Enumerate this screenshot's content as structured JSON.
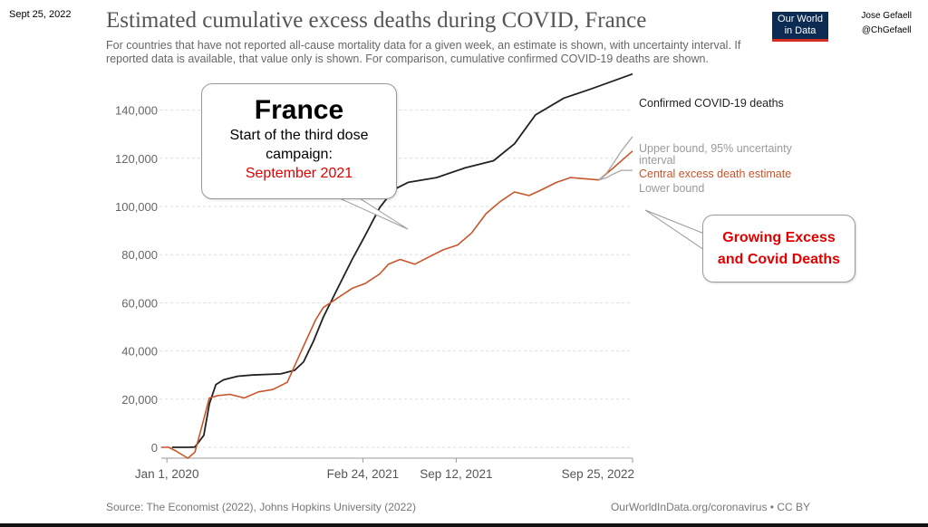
{
  "corner_date": "Sept 25, 2022",
  "author": {
    "name": "Jose Gefaell",
    "handle": "@ChGefaell"
  },
  "logo": {
    "line1": "Our World",
    "line2": "in Data"
  },
  "title": "Estimated cumulative excess deaths during COVID, France",
  "subtitle": "For countries that have not reported all-cause mortality data for a given week, an estimate is shown, with uncertainty interval. If reported data is available, that value only is shown. For comparison, cumulative confirmed COVID-19 deaths are shown.",
  "source": "Source: The Economist (2022), Johns Hopkins University (2022)",
  "credit": "OurWorldInData.org/coronavirus • CC BY",
  "callout_france": {
    "heading": "France",
    "line1": "Start of the third dose",
    "line2": "campaign:",
    "highlight": "September 2021"
  },
  "callout_growing": {
    "line1": "Growing Excess",
    "line2": "and Covid Deaths"
  },
  "colors": {
    "confirmed": "#222222",
    "central": "#c8552a",
    "upper": "#a8a8a8",
    "lower": "#a8a8a8",
    "alert": "#e00000"
  },
  "chart_data": {
    "type": "line",
    "ylim": [
      0,
      150000
    ],
    "yticks": [
      "0",
      "20,000",
      "40,000",
      "60,000",
      "80,000",
      "100,000",
      "120,000",
      "140,000"
    ],
    "yticks_values": [
      0,
      20000,
      40000,
      60000,
      80000,
      100000,
      120000,
      140000
    ],
    "xtick_labels": [
      "Jan 1, 2020",
      "Feb 24, 2021",
      "Sep 12, 2021",
      "Sep 25, 2022"
    ],
    "xtick_dates": [
      "2020-01-01",
      "2021-02-24",
      "2021-09-12",
      "2022-09-25"
    ],
    "xlim": [
      "2019-12-20",
      "2022-09-25"
    ],
    "grid": true,
    "series": [
      {
        "name": "Confirmed COVID-19 deaths",
        "key": "confirmed",
        "x": [
          "2020-01-12",
          "2020-02-15",
          "2020-03-01",
          "2020-03-20",
          "2020-04-01",
          "2020-04-15",
          "2020-05-01",
          "2020-06-01",
          "2020-07-01",
          "2020-09-01",
          "2020-10-01",
          "2020-10-20",
          "2020-11-10",
          "2020-12-01",
          "2021-01-01",
          "2021-02-01",
          "2021-03-01",
          "2021-04-01",
          "2021-05-01",
          "2021-06-01",
          "2021-08-01",
          "2021-10-01",
          "2021-12-01",
          "2022-01-15",
          "2022-03-01",
          "2022-05-01",
          "2022-07-01",
          "2022-09-25"
        ],
        "values": [
          0,
          0,
          100,
          5000,
          18000,
          26000,
          28000,
          29500,
          30000,
          30500,
          32000,
          35500,
          44000,
          54000,
          66000,
          78000,
          88000,
          99500,
          107000,
          110000,
          112000,
          116000,
          119000,
          126000,
          138000,
          145000,
          149000,
          155000
        ]
      },
      {
        "name": "Central excess death estimate",
        "key": "central",
        "x": [
          "2019-12-20",
          "2020-01-05",
          "2020-01-20",
          "2020-02-15",
          "2020-03-01",
          "2020-03-15",
          "2020-04-01",
          "2020-04-20",
          "2020-05-15",
          "2020-06-15",
          "2020-07-15",
          "2020-08-15",
          "2020-09-15",
          "2020-10-15",
          "2020-11-15",
          "2020-12-01",
          "2021-01-01",
          "2021-02-01",
          "2021-03-01",
          "2021-04-01",
          "2021-04-20",
          "2021-05-15",
          "2021-06-15",
          "2021-07-15",
          "2021-08-15",
          "2021-09-15",
          "2021-10-15",
          "2021-11-15",
          "2021-12-15",
          "2022-01-15",
          "2022-02-15",
          "2022-03-15",
          "2022-04-15",
          "2022-05-15",
          "2022-06-15",
          "2022-07-15",
          "2022-08-15",
          "2022-09-25"
        ],
        "values": [
          0,
          0,
          -1500,
          -4500,
          -2000,
          8000,
          20500,
          21500,
          22000,
          20500,
          23000,
          24000,
          27000,
          40000,
          53000,
          58000,
          62000,
          66000,
          68000,
          72000,
          76000,
          78000,
          76000,
          79000,
          82000,
          84000,
          89000,
          97000,
          102000,
          106000,
          104500,
          107000,
          110000,
          112000,
          111500,
          111000,
          116000,
          123000
        ]
      },
      {
        "name": "Upper bound, 95% uncertainty interval",
        "key": "upper",
        "x": [
          "2022-07-15",
          "2022-08-01",
          "2022-08-15",
          "2022-09-01",
          "2022-09-25"
        ],
        "values": [
          111000,
          114000,
          118000,
          123000,
          129000
        ]
      },
      {
        "name": "Lower bound",
        "key": "lower",
        "x": [
          "2022-07-15",
          "2022-08-01",
          "2022-08-15",
          "2022-09-01",
          "2022-09-25"
        ],
        "values": [
          111000,
          112000,
          113500,
          115000,
          115000
        ]
      }
    ]
  }
}
